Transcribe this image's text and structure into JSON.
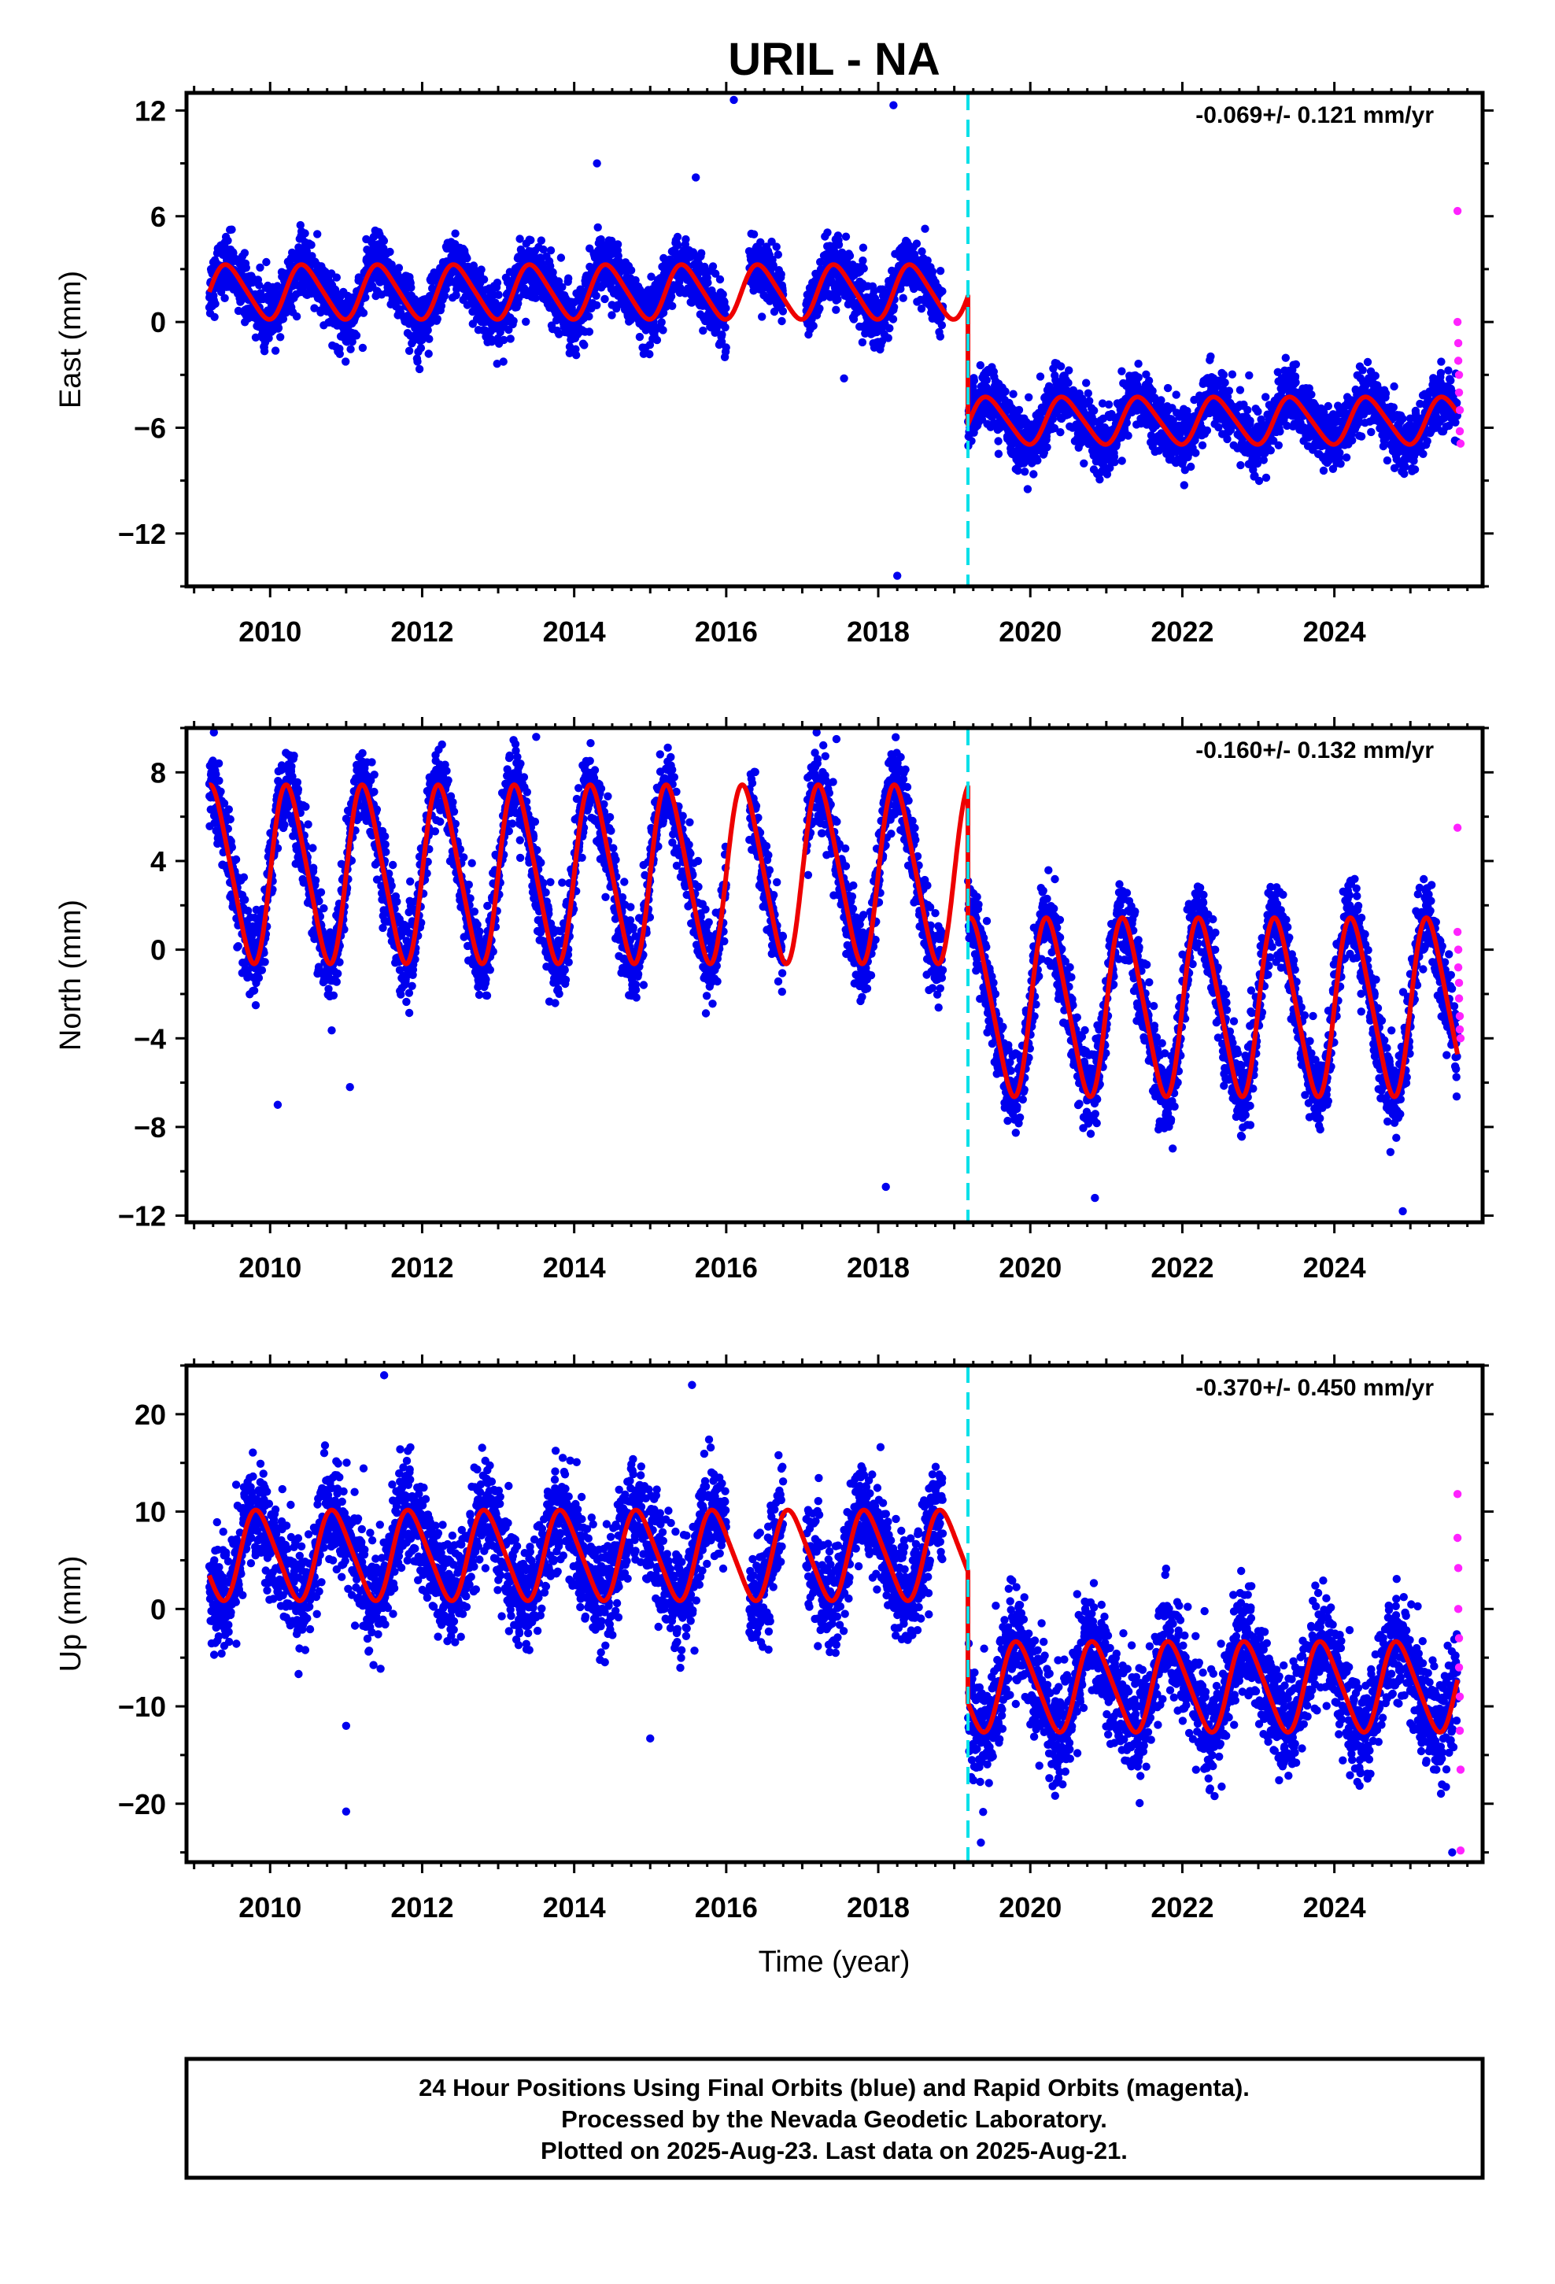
{
  "chart_data": [
    {
      "type": "scatter",
      "title": "URIL - NA",
      "ylabel": "East (mm)",
      "xlabel": "",
      "xlim": [
        2008.9,
        2025.95
      ],
      "ylim": [
        -15,
        13
      ],
      "xticks": [
        2010,
        2012,
        2014,
        2016,
        2018,
        2020,
        2022,
        2024
      ],
      "xtick_labels": [
        "2010",
        "2012",
        "2014",
        "2016",
        "2018",
        "2020",
        "2022",
        "2024"
      ],
      "yticks": [
        12,
        6,
        0,
        -6,
        -12
      ],
      "ytick_labels": [
        "12",
        "6",
        "0",
        "−6",
        "−12"
      ],
      "rate_label": "-0.069+/- 0.121 mm/yr",
      "offset_epoch": 2019.18,
      "final_orbits_color": "#0000ee",
      "rapid_orbits_color": "#ff22ff",
      "model_color": "#ee0000",
      "offset_line_color": "#00e0e8",
      "model": {
        "pre": {
          "start": 2009.2,
          "end": 2019.18,
          "base": 1.7,
          "amp": 1.5,
          "phase": 0.2
        },
        "post": {
          "start": 2019.18,
          "end": 2025.62,
          "base": -5.6,
          "amp": 1.3,
          "phase": 0.2
        }
      },
      "scatter_spread": 1.4,
      "outliers": [
        {
          "x": 2016.1,
          "y": 12.6
        },
        {
          "x": 2018.2,
          "y": 12.3
        },
        {
          "x": 2018.25,
          "y": -14.4
        },
        {
          "x": 2014.3,
          "y": 9.0
        },
        {
          "x": 2015.6,
          "y": 8.2
        },
        {
          "x": 2017.55,
          "y": -3.2
        }
      ],
      "rapid_points": [
        {
          "x": 2025.62,
          "y": 6.3
        },
        {
          "x": 2025.62,
          "y": 0.0
        },
        {
          "x": 2025.63,
          "y": -1.2
        },
        {
          "x": 2025.63,
          "y": -2.2
        },
        {
          "x": 2025.64,
          "y": -3.0
        },
        {
          "x": 2025.64,
          "y": -4.0
        },
        {
          "x": 2025.65,
          "y": -5.0
        },
        {
          "x": 2025.65,
          "y": -6.2
        },
        {
          "x": 2025.66,
          "y": -6.9
        }
      ]
    },
    {
      "type": "scatter",
      "title": "",
      "ylabel": "North (mm)",
      "xlabel": "",
      "xlim": [
        2008.9,
        2025.95
      ],
      "ylim": [
        -12.3,
        10
      ],
      "xticks": [
        2010,
        2012,
        2014,
        2016,
        2018,
        2020,
        2022,
        2024
      ],
      "xtick_labels": [
        "2010",
        "2012",
        "2014",
        "2016",
        "2018",
        "2020",
        "2022",
        "2024"
      ],
      "yticks": [
        8,
        4,
        0,
        -4,
        -8,
        -12
      ],
      "ytick_labels": [
        "8",
        "4",
        "0",
        "−4",
        "−8",
        "−12"
      ],
      "rate_label": "-0.160+/- 0.132 mm/yr",
      "offset_epoch": 2019.18,
      "final_orbits_color": "#0000ee",
      "rapid_orbits_color": "#ff22ff",
      "model_color": "#ee0000",
      "offset_line_color": "#00e0e8",
      "model": {
        "pre": {
          "start": 2009.2,
          "end": 2019.18,
          "base": 3.4,
          "amp": 3.9,
          "phase": 0.0
        },
        "post": {
          "start": 2019.18,
          "end": 2025.62,
          "base": -2.6,
          "amp": 3.9,
          "phase": 0.0
        }
      },
      "scatter_spread": 1.5,
      "outliers": [
        {
          "x": 2010.1,
          "y": -7.0
        },
        {
          "x": 2011.05,
          "y": -6.2
        },
        {
          "x": 2018.1,
          "y": -10.7
        },
        {
          "x": 2020.85,
          "y": -11.2
        },
        {
          "x": 2024.9,
          "y": -11.8
        },
        {
          "x": 2013.5,
          "y": 9.6
        },
        {
          "x": 2017.45,
          "y": 9.5
        }
      ],
      "rapid_points": [
        {
          "x": 2025.62,
          "y": 5.5
        },
        {
          "x": 2025.62,
          "y": 0.8
        },
        {
          "x": 2025.63,
          "y": 0.0
        },
        {
          "x": 2025.63,
          "y": -0.8
        },
        {
          "x": 2025.64,
          "y": -1.5
        },
        {
          "x": 2025.64,
          "y": -2.2
        },
        {
          "x": 2025.65,
          "y": -3.0
        },
        {
          "x": 2025.65,
          "y": -3.6
        },
        {
          "x": 2025.66,
          "y": -4.0
        }
      ]
    },
    {
      "type": "scatter",
      "title": "",
      "ylabel": "Up (mm)",
      "xlabel": "Time (year)",
      "xlim": [
        2008.9,
        2025.95
      ],
      "ylim": [
        -26,
        25
      ],
      "xticks": [
        2010,
        2012,
        2014,
        2016,
        2018,
        2020,
        2022,
        2024
      ],
      "xtick_labels": [
        "2010",
        "2012",
        "2014",
        "2016",
        "2018",
        "2020",
        "2022",
        "2024"
      ],
      "yticks": [
        20,
        10,
        0,
        -10,
        -20
      ],
      "ytick_labels": [
        "20",
        "10",
        "0",
        "−10",
        "−20"
      ],
      "rate_label": "-0.370+/- 0.450 mm/yr",
      "offset_epoch": 2019.18,
      "final_orbits_color": "#0000ee",
      "rapid_orbits_color": "#ff22ff",
      "model_color": "#ee0000",
      "offset_line_color": "#00e0e8",
      "model": {
        "pre": {
          "start": 2009.2,
          "end": 2019.18,
          "base": 5.5,
          "amp": 4.5,
          "phase": 0.6
        },
        "post": {
          "start": 2019.18,
          "end": 2025.62,
          "base": -8.0,
          "amp": 4.5,
          "phase": 0.6
        }
      },
      "scatter_spread": 4.5,
      "outliers": [
        {
          "x": 2011.0,
          "y": -20.8
        },
        {
          "x": 2011.0,
          "y": -12.0
        },
        {
          "x": 2011.5,
          "y": 24.0
        },
        {
          "x": 2015.55,
          "y": 23.0
        },
        {
          "x": 2015.0,
          "y": -13.3
        },
        {
          "x": 2019.35,
          "y": -24.0
        },
        {
          "x": 2025.55,
          "y": -25.0
        }
      ],
      "rapid_points": [
        {
          "x": 2025.62,
          "y": 11.8
        },
        {
          "x": 2025.62,
          "y": 7.3
        },
        {
          "x": 2025.63,
          "y": 4.2
        },
        {
          "x": 2025.63,
          "y": 0.0
        },
        {
          "x": 2025.64,
          "y": -3.0
        },
        {
          "x": 2025.64,
          "y": -6.0
        },
        {
          "x": 2025.65,
          "y": -9.0
        },
        {
          "x": 2025.65,
          "y": -12.5
        },
        {
          "x": 2025.66,
          "y": -16.5
        },
        {
          "x": 2025.66,
          "y": -24.8
        }
      ]
    }
  ],
  "footer": {
    "line1": "24 Hour Positions Using Final Orbits (blue) and Rapid Orbits (magenta).",
    "line2": "Processed by the Nevada Geodetic Laboratory.",
    "line3": "Plotted on 2025-Aug-23. Last data on 2025-Aug-21."
  }
}
